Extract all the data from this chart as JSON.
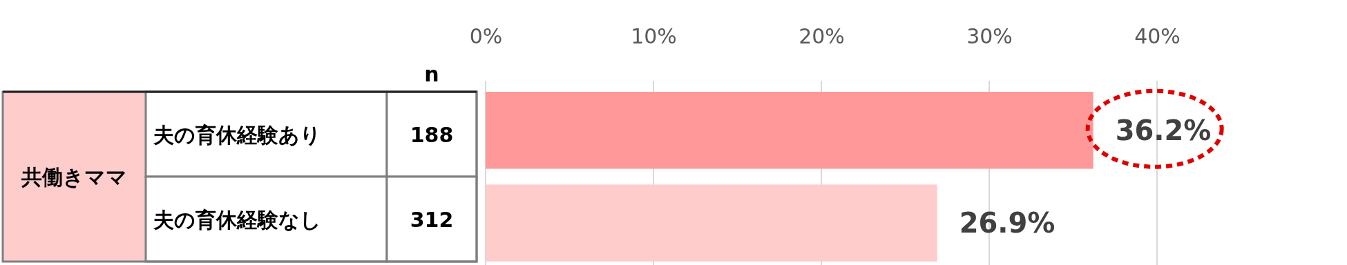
{
  "chart_data": {
    "type": "bar",
    "orientation": "horizontal",
    "categories": [
      "夫の育休経験あり",
      "夫の育休経験なし"
    ],
    "values": [
      36.2,
      26.9
    ],
    "colors": [
      "#ff9999",
      "#ffcccc"
    ],
    "value_labels": [
      "36.2%",
      "26.9%"
    ],
    "xlim": [
      0,
      40
    ],
    "xticks": [
      {
        "value": 0,
        "label": "0%"
      },
      {
        "value": 10,
        "label": "10%"
      },
      {
        "value": 20,
        "label": "20%"
      },
      {
        "value": 30,
        "label": "30%"
      },
      {
        "value": 40,
        "label": "40%"
      }
    ],
    "grid": "x",
    "annotations": [
      "共働きママ",
      "n",
      "188",
      "312"
    ]
  }
}
